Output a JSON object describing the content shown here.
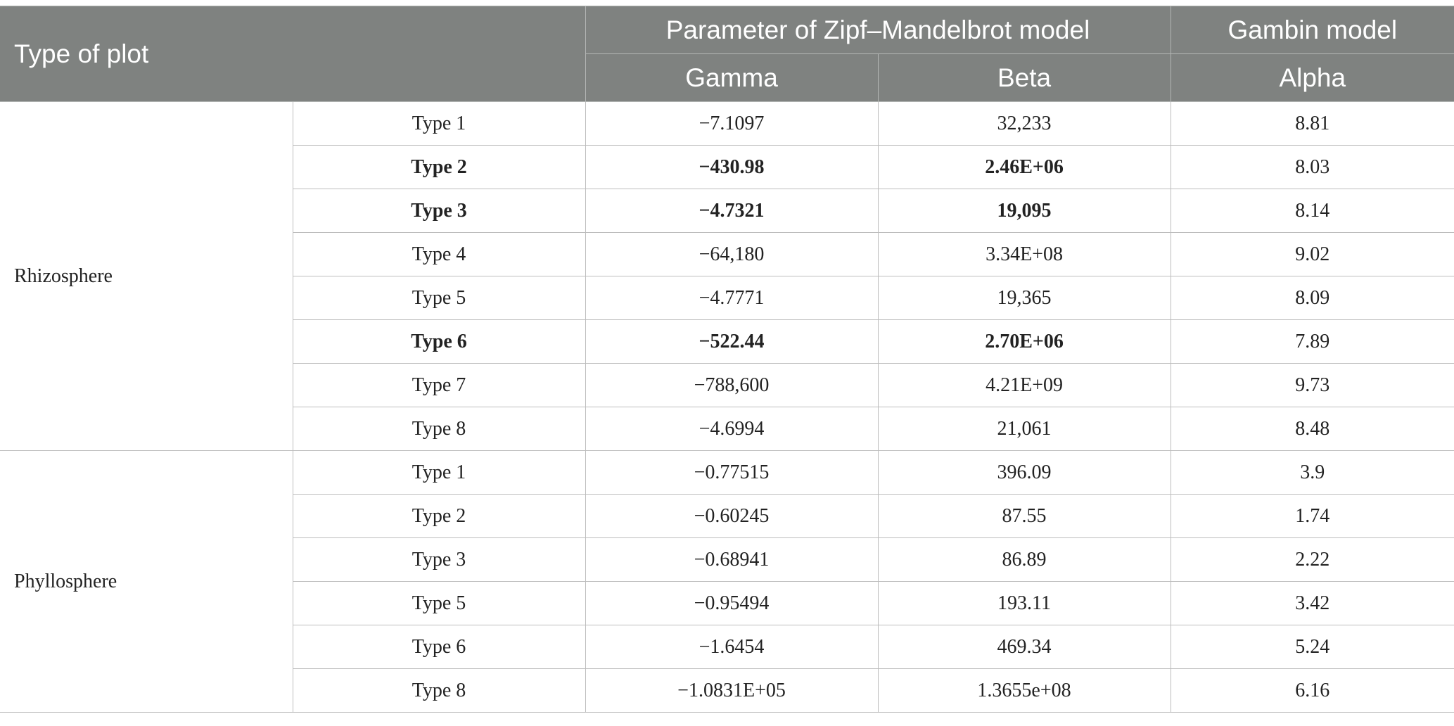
{
  "header": {
    "type_of_plot": "Type of plot",
    "zipf_group": "Parameter of Zipf–Mandelbrot model",
    "gambin_group": "Gambin model",
    "gamma": "Gamma",
    "beta": "Beta",
    "alpha": "Alpha"
  },
  "groups": [
    {
      "name": "Rhizosphere",
      "rows": [
        {
          "type": "Type 1",
          "gamma": "−7.1097",
          "beta": "32,233",
          "alpha": "8.81",
          "bold": false
        },
        {
          "type": "Type 2",
          "gamma": "−430.98",
          "beta": "2.46E+06",
          "alpha": "8.03",
          "bold": true
        },
        {
          "type": "Type 3",
          "gamma": "−4.7321",
          "beta": "19,095",
          "alpha": "8.14",
          "bold": true
        },
        {
          "type": "Type 4",
          "gamma": "−64,180",
          "beta": "3.34E+08",
          "alpha": "9.02",
          "bold": false
        },
        {
          "type": "Type 5",
          "gamma": "−4.7771",
          "beta": "19,365",
          "alpha": "8.09",
          "bold": false
        },
        {
          "type": "Type 6",
          "gamma": "−522.44",
          "beta": "2.70E+06",
          "alpha": "7.89",
          "bold": true
        },
        {
          "type": "Type 7",
          "gamma": "−788,600",
          "beta": "4.21E+09",
          "alpha": "9.73",
          "bold": false
        },
        {
          "type": "Type 8",
          "gamma": "−4.6994",
          "beta": "21,061",
          "alpha": "8.48",
          "bold": false
        }
      ]
    },
    {
      "name": "Phyllosphere",
      "rows": [
        {
          "type": "Type 1",
          "gamma": "−0.77515",
          "beta": "396.09",
          "alpha": "3.9",
          "bold": false
        },
        {
          "type": "Type 2",
          "gamma": "−0.60245",
          "beta": "87.55",
          "alpha": "1.74",
          "bold": false
        },
        {
          "type": "Type 3",
          "gamma": "−0.68941",
          "beta": "86.89",
          "alpha": "2.22",
          "bold": false
        },
        {
          "type": "Type 5",
          "gamma": "−0.95494",
          "beta": "193.11",
          "alpha": "3.42",
          "bold": false
        },
        {
          "type": "Type 6",
          "gamma": "−1.6454",
          "beta": "469.34",
          "alpha": "5.24",
          "bold": false
        },
        {
          "type": "Type 8",
          "gamma": "−1.0831E+05",
          "beta": "1.3655e+08",
          "alpha": "6.16",
          "bold": false
        }
      ]
    }
  ]
}
